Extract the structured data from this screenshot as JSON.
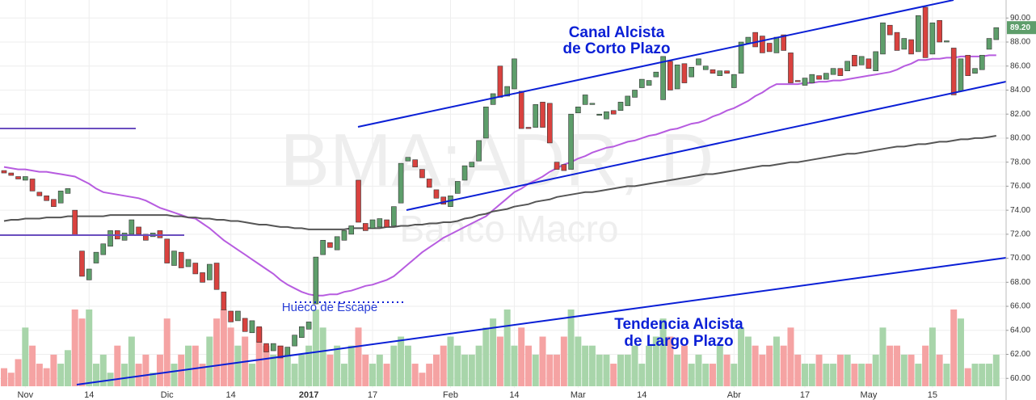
{
  "chart_data": {
    "type": "candlestick",
    "watermark": "BMA:ADR, D",
    "watermark_subtitle": "Banco Macro",
    "annotations": [
      "Canal Alcista",
      "de Corto Plazo",
      "Hueco de Escape",
      "Tendencia Alcista",
      "de Largo Plazo"
    ],
    "last_price": {
      "value": 89.2,
      "label": "89.20"
    },
    "up_color": "#5e9e6b",
    "down_color": "#d9423f",
    "volume_up_color": "#a8d5aa",
    "volume_down_color": "#f5a3a3",
    "categories": [
      null,
      null,
      null,
      "Nov",
      null,
      null,
      null,
      null,
      null,
      null,
      null,
      null,
      "14",
      null,
      null,
      null,
      null,
      null,
      null,
      null,
      null,
      null,
      null,
      "Dic",
      null,
      null,
      null,
      null,
      null,
      null,
      null,
      null,
      "14",
      null,
      null,
      null,
      null,
      null,
      null,
      null,
      null,
      null,
      null,
      "2017",
      null,
      null,
      null,
      null,
      null,
      null,
      null,
      null,
      "17",
      null,
      null,
      null,
      null,
      null,
      null,
      null,
      null,
      null,
      null,
      "Feb",
      null,
      null,
      null,
      null,
      null,
      null,
      null,
      null,
      "14",
      null,
      null,
      null,
      null,
      null,
      null,
      null,
      null,
      "Mar",
      null,
      null,
      null,
      null,
      null,
      null,
      null,
      null,
      "14",
      null,
      null,
      null,
      null,
      null,
      null,
      null,
      null,
      null,
      null,
      null,
      null,
      "Abr",
      null,
      null,
      null,
      null,
      null,
      null,
      null,
      null,
      null,
      "17",
      null,
      null,
      null,
      null,
      null,
      null,
      null,
      null,
      "May",
      null,
      null,
      null,
      null,
      null,
      null,
      null,
      null,
      "15",
      null,
      null,
      null,
      null,
      null,
      null,
      null,
      null,
      null
    ],
    "open": [
      77.3,
      77.1,
      76.8,
      76.5,
      76.6,
      75.5,
      75.2,
      74.9,
      74.6,
      75.4,
      74.0,
      70.6,
      68.2,
      69.6,
      70.3,
      71.0,
      72.3,
      71.5,
      72.0,
      72.6,
      72.0,
      71.8,
      72.3,
      71.6,
      69.4,
      70.5,
      69.3,
      69.6,
      68.8,
      68.2,
      69.6,
      67.2,
      65.6,
      64.8,
      65.0,
      63.8,
      64.3,
      62.9,
      62.3,
      62.7,
      61.9,
      62.7,
      63.4,
      64.1,
      66.2,
      70.3,
      71.3,
      70.7,
      71.5,
      72.0,
      76.5,
      72.9,
      72.5,
      72.6,
      73.2,
      72.7,
      74.6,
      78.1,
      78.2,
      77.4,
      76.6,
      75.7,
      75.1,
      74.3,
      75.4,
      76.5,
      77.6,
      78.1,
      80.0,
      82.8,
      86.0,
      83.5,
      84.1,
      83.9,
      80.9,
      80.9,
      83.0,
      82.9,
      78.0,
      77.8,
      77.4,
      82.1,
      82.8,
      82.8,
      81.9,
      81.6,
      82.3,
      82.3,
      82.7,
      83.4,
      84.2,
      84.4,
      85.1,
      83.2,
      86.4,
      84.1,
      86.2,
      85.1,
      86.1,
      85.7,
      85.7,
      85.2,
      85.6,
      84.2,
      85.4,
      87.9,
      88.8,
      88.5,
      87.9,
      87.1,
      88.6,
      87.1,
      84.8,
      84.4,
      84.6,
      85.2,
      84.9,
      85.3,
      85.8,
      85.6,
      86.9,
      86.1,
      86.6,
      85.6,
      87.0,
      89.4,
      88.8,
      87.4,
      88.2,
      87.2,
      90.9,
      87.0,
      89.8,
      88.0,
      87.5,
      83.9,
      86.9,
      85.4,
      85.7,
      87.4,
      88.2
    ],
    "close": [
      77.1,
      76.9,
      76.6,
      76.8,
      75.6,
      75.2,
      74.8,
      74.3,
      75.6,
      75.8,
      71.9,
      68.5,
      69.1,
      70.5,
      71.2,
      72.3,
      71.6,
      72.1,
      73.2,
      72.0,
      71.5,
      72.1,
      71.7,
      69.6,
      70.6,
      69.2,
      69.9,
      68.7,
      68.0,
      69.5,
      67.4,
      65.7,
      64.7,
      65.6,
      63.9,
      64.8,
      63.0,
      62.2,
      62.9,
      61.7,
      62.6,
      63.6,
      64.3,
      64.7,
      70.1,
      71.5,
      70.9,
      71.8,
      72.3,
      72.7,
      73.0,
      72.3,
      73.2,
      73.3,
      72.6,
      74.3,
      77.9,
      78.4,
      77.6,
      76.7,
      75.9,
      75.0,
      74.5,
      75.2,
      76.4,
      77.7,
      78.0,
      79.8,
      82.6,
      83.7,
      83.4,
      84.3,
      86.6,
      80.8,
      80.8,
      82.8,
      80.9,
      79.6,
      77.4,
      77.3,
      82.0,
      82.6,
      83.6,
      82.9,
      82.0,
      82.2,
      82.0,
      83.0,
      83.5,
      84.0,
      84.9,
      84.8,
      85.5,
      86.8,
      84.0,
      86.1,
      84.6,
      85.9,
      86.6,
      86.0,
      85.4,
      85.6,
      85.4,
      85.3,
      88.0,
      88.4,
      87.6,
      87.1,
      87.2,
      88.4,
      87.3,
      84.6,
      84.7,
      85.0,
      85.3,
      84.9,
      85.4,
      85.8,
      85.2,
      86.4,
      86.0,
      86.8,
      85.8,
      87.2,
      89.6,
      88.6,
      87.3,
      88.3,
      87.0,
      90.2,
      86.7,
      89.6,
      88.0,
      88.1,
      83.6,
      86.6,
      85.2,
      85.8,
      86.9,
      88.3,
      89.2
    ],
    "volume": [
      2,
      1.5,
      3,
      6.5,
      4.5,
      2.5,
      2,
      3.5,
      2.5,
      4,
      8.5,
      7.5,
      8.5,
      2.5,
      3.5,
      1.5,
      4.5,
      2.5,
      5.5,
      2.5,
      3.5,
      1.5,
      3.5,
      7.5,
      2.5,
      3.5,
      4.5,
      4.5,
      2.5,
      5.5,
      7.5,
      8.5,
      6.5,
      4.5,
      5.5,
      2.5,
      6.5,
      4.5,
      3.5,
      4.5,
      3.5,
      2.5,
      3.5,
      4.5,
      8.5,
      6.5,
      3.5,
      4.5,
      2.5,
      4.5,
      6.5,
      3.5,
      2.5,
      3.5,
      2.5,
      4.5,
      5.5,
      4.5,
      2.5,
      1.5,
      2.5,
      3.5,
      4.5,
      5.5,
      4.5,
      3.5,
      3.5,
      4.5,
      6.5,
      7.5,
      5.5,
      8.5,
      4.5,
      6.5,
      4.5,
      3.5,
      5.5,
      3.5,
      3.5,
      5.5,
      8.5,
      5.5,
      4.5,
      4.5,
      3.5,
      3.5,
      2.5,
      3.5,
      3.5,
      4.5,
      2.5,
      4.5,
      5.5,
      7.5,
      5.5,
      3.5,
      4.5,
      2.5,
      3.5,
      2.5,
      2.5,
      4.5,
      3.5,
      2.5,
      6.5,
      5.5,
      4.5,
      3.5,
      4.5,
      5.5,
      4.5,
      6.5,
      3.5,
      2.5,
      2.5,
      3.5,
      2.5,
      2.5,
      3.5,
      3.5,
      2.5,
      2.5,
      2.5,
      3.5,
      6.5,
      4.5,
      4.5,
      3.5,
      3.5,
      2.5,
      4.5,
      6.5,
      3.5,
      2.5,
      8.5,
      7.5,
      2,
      2.5,
      2.5,
      2.5,
      3.5
    ],
    "lines": [
      {
        "color": "#b75ce0",
        "values": [
          77.6,
          77.5,
          77.4,
          77.4,
          77.3,
          77.2,
          77.2,
          77.1,
          77.0,
          76.9,
          76.8,
          76.5,
          76.2,
          75.8,
          75.5,
          75.4,
          75.3,
          75.2,
          75.1,
          75.0,
          74.8,
          74.5,
          74.2,
          74.0,
          73.8,
          73.6,
          73.4,
          73.3,
          72.9,
          72.5,
          72.0,
          71.5,
          71.1,
          70.7,
          70.3,
          69.9,
          69.5,
          69.1,
          68.7,
          68.2,
          67.8,
          67.5,
          67.2,
          67.0,
          66.9,
          66.9,
          67.0,
          67.0,
          67.2,
          67.3,
          67.5,
          67.7,
          67.8,
          68.0,
          68.2,
          68.5,
          69.0,
          69.5,
          70.0,
          70.5,
          70.9,
          71.3,
          71.7,
          72.0,
          72.3,
          72.6,
          72.9,
          73.2,
          73.5,
          74.0,
          74.5,
          75.0,
          75.5,
          75.8,
          76.2,
          76.5,
          76.8,
          77.2,
          77.5,
          77.8,
          78.0,
          78.3,
          78.5,
          78.8,
          79.0,
          79.2,
          79.3,
          79.5,
          79.7,
          79.8,
          80.0,
          80.2,
          80.3,
          80.5,
          80.7,
          80.8,
          81.0,
          81.2,
          81.3,
          81.5,
          81.8,
          82.0,
          82.3,
          82.5,
          82.8,
          83.1,
          83.5,
          83.8,
          84.2,
          84.5,
          84.5,
          84.5,
          84.5,
          84.6,
          84.6,
          84.7,
          84.7,
          84.8,
          84.8,
          84.9,
          85.0,
          85.1,
          85.2,
          85.3,
          85.4,
          85.5,
          85.7,
          86.0,
          86.2,
          86.5,
          86.5,
          86.6,
          86.6,
          86.7,
          86.7,
          86.8,
          86.8,
          86.8,
          86.8,
          86.9,
          86.9
        ]
      },
      {
        "color": "#555555",
        "values": [
          73.1,
          73.2,
          73.2,
          73.3,
          73.3,
          73.3,
          73.4,
          73.4,
          73.4,
          73.5,
          73.5,
          73.5,
          73.5,
          73.5,
          73.5,
          73.6,
          73.6,
          73.6,
          73.6,
          73.6,
          73.6,
          73.6,
          73.6,
          73.6,
          73.5,
          73.5,
          73.4,
          73.4,
          73.3,
          73.3,
          73.2,
          73.2,
          73.1,
          73.1,
          73.0,
          72.9,
          72.8,
          72.8,
          72.7,
          72.6,
          72.6,
          72.5,
          72.5,
          72.4,
          72.4,
          72.4,
          72.4,
          72.4,
          72.4,
          72.5,
          72.5,
          72.5,
          72.5,
          72.5,
          72.6,
          72.6,
          72.7,
          72.7,
          72.8,
          72.8,
          72.9,
          72.9,
          73.0,
          73.0,
          73.1,
          73.3,
          73.4,
          73.6,
          73.7,
          73.9,
          74.0,
          74.1,
          74.3,
          74.4,
          74.5,
          74.7,
          74.8,
          74.9,
          75.1,
          75.2,
          75.3,
          75.4,
          75.5,
          75.5,
          75.6,
          75.7,
          75.8,
          75.9,
          76.0,
          76.0,
          76.1,
          76.2,
          76.3,
          76.4,
          76.5,
          76.6,
          76.7,
          76.8,
          76.9,
          77.0,
          77.0,
          77.1,
          77.2,
          77.3,
          77.4,
          77.5,
          77.6,
          77.7,
          77.7,
          77.8,
          77.9,
          78.0,
          78.0,
          78.1,
          78.2,
          78.3,
          78.4,
          78.5,
          78.6,
          78.7,
          78.7,
          78.8,
          78.9,
          79.0,
          79.1,
          79.2,
          79.3,
          79.3,
          79.4,
          79.5,
          79.5,
          79.6,
          79.7,
          79.7,
          79.8,
          79.9,
          79.9,
          80.0,
          80.0,
          80.1,
          80.2
        ]
      }
    ],
    "ylim": [
      58.2,
      91.5
    ],
    "yticks": [
      {
        "value": 60,
        "label": "60.00"
      },
      {
        "value": 62,
        "label": "62.00"
      },
      {
        "value": 64,
        "label": "64.00"
      },
      {
        "value": 66,
        "label": "66.00"
      },
      {
        "value": 68,
        "label": "68.00"
      },
      {
        "value": 70,
        "label": "70.00"
      },
      {
        "value": 72,
        "label": "72.00"
      },
      {
        "value": 74,
        "label": "74.00"
      },
      {
        "value": 76,
        "label": "76.00"
      },
      {
        "value": 78,
        "label": "78.00"
      },
      {
        "value": 80,
        "label": "80.00"
      },
      {
        "value": 82,
        "label": "82.00"
      },
      {
        "value": 84,
        "label": "84.00"
      },
      {
        "value": 86,
        "label": "86.00"
      },
      {
        "value": 88,
        "label": "88.00"
      },
      {
        "value": 90,
        "label": "90.00"
      }
    ],
    "grid": true
  }
}
